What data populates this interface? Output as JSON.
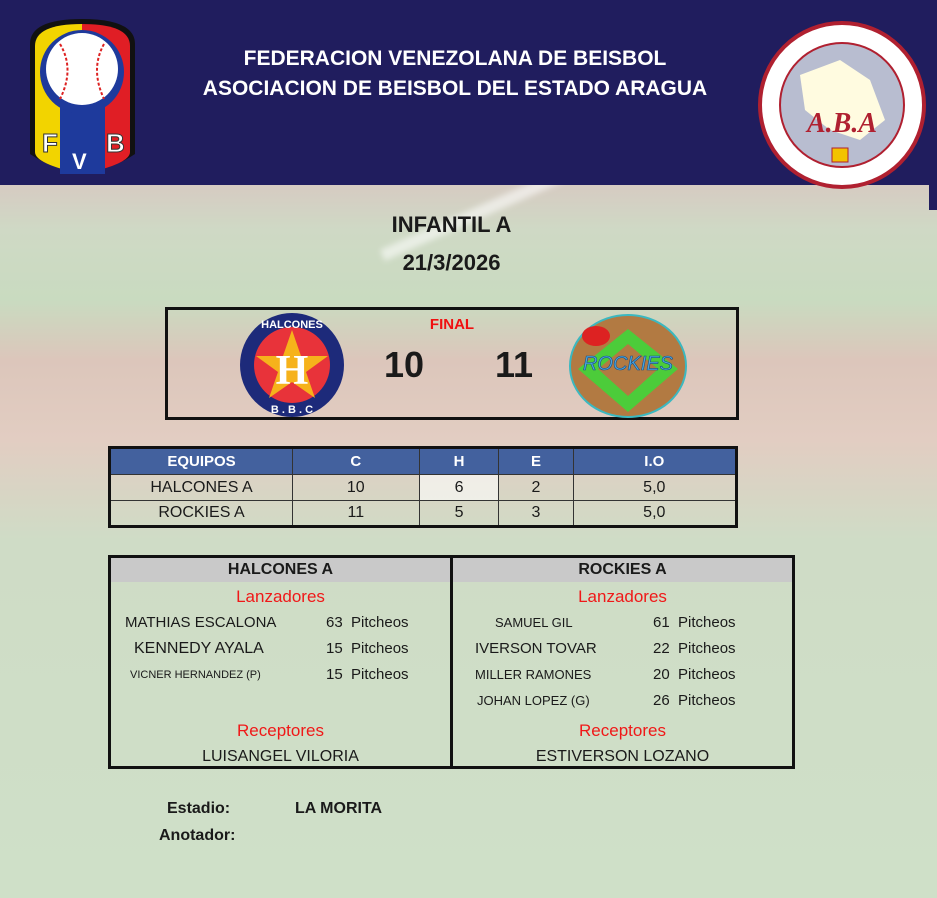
{
  "header": {
    "line1": "FEDERACION VENEZOLANA DE BEISBOL",
    "line2": "ASOCIACION DE BEISBOL DEL ESTADO ARAGUA",
    "left_logo": "FVB",
    "right_logo": "ASOCIACION DE BEISBOL AFICIONADO DEL ESTADO ARAGUA A.B.A"
  },
  "category": "INFANTIL A",
  "date": "21/3/2026",
  "scoreboard": {
    "status": "FINAL",
    "home_score": "10",
    "away_score": "11",
    "home_logo": "HALCONES B.B.C",
    "away_logo": "ROCKIES"
  },
  "stats": {
    "headers": [
      "EQUIPOS",
      "C",
      "H",
      "E",
      "I.O"
    ],
    "rows": [
      [
        "HALCONES A",
        "10",
        "6",
        "2",
        "5,0"
      ],
      [
        "ROCKIES A",
        "11",
        "5",
        "3",
        "5,0"
      ]
    ]
  },
  "pitching": [
    {
      "team": "HALCONES A",
      "pitchers_label": "Lanzadores",
      "pitchers": [
        {
          "name": "MATHIAS ESCALONA",
          "pitches": "63  Pitcheos"
        },
        {
          "name": "KENNEDY AYALA",
          "pitches": "15  Pitcheos"
        },
        {
          "name": "VICNER HERNANDEZ (P)",
          "pitches": "15  Pitcheos"
        }
      ],
      "catchers_label": "Receptores",
      "catcher": "LUISANGEL VILORIA"
    },
    {
      "team": "ROCKIES A",
      "pitchers_label": "Lanzadores",
      "pitchers": [
        {
          "name": "SAMUEL GIL",
          "pitches": "61  Pitcheos"
        },
        {
          "name": "IVERSON TOVAR",
          "pitches": "22  Pitcheos"
        },
        {
          "name": "MILLER RAMONES",
          "pitches": "20  Pitcheos"
        },
        {
          "name": "JOHAN LOPEZ (G)",
          "pitches": "26  Pitcheos"
        }
      ],
      "catchers_label": "Receptores",
      "catcher": "ESTIVERSON LOZANO"
    }
  ],
  "footer": {
    "stadium_label": "Estadio:",
    "stadium": "LA MORITA",
    "scorer_label": "Anotador:",
    "scorer": ""
  },
  "colors": {
    "header_bg": "#201d5e",
    "table_header": "#43619e",
    "accent_red": "#f01010"
  }
}
